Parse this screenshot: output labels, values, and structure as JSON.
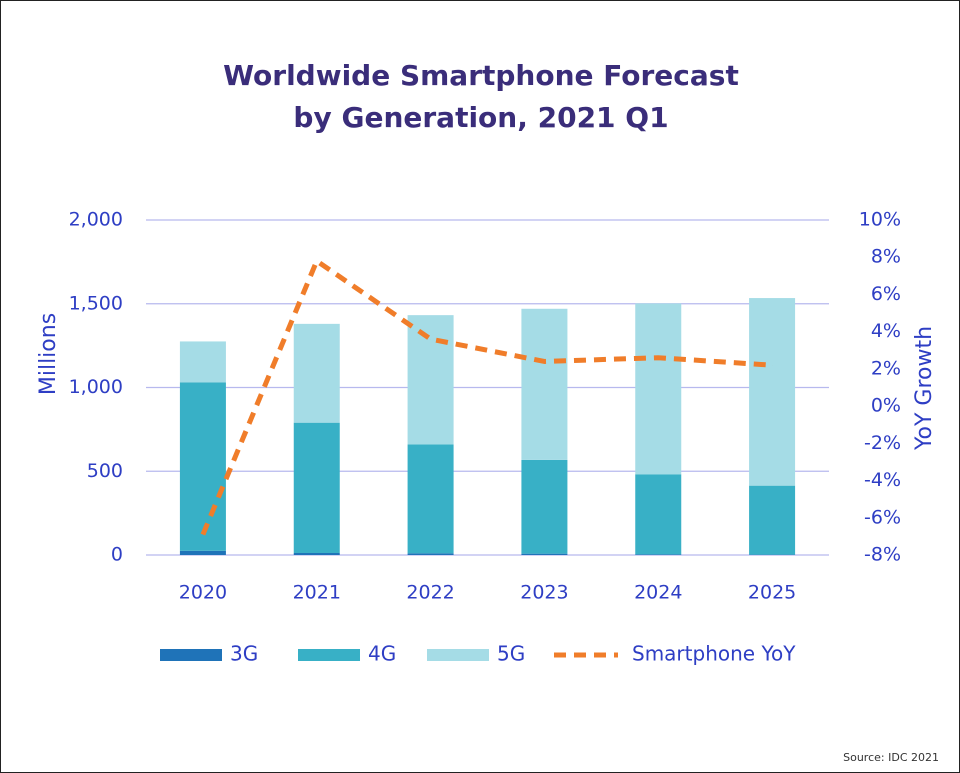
{
  "colors": {
    "title": "#3a2d7a",
    "axis_text": "#2e3ec4",
    "grid": "#b7b9ee",
    "3G": "#1f73b8",
    "4G": "#38b0c6",
    "5G": "#a5dce6",
    "yoy": "#f07d2a"
  },
  "source": "Source: IDC 2021",
  "chart_data": {
    "type": "bar",
    "stacked": true,
    "title_lines": [
      "Worldwide Smartphone Forecast",
      "by Generation, 2021 Q1"
    ],
    "ylabel": "Millions",
    "y2label": "YoY Growth",
    "categories": [
      "2020",
      "2021",
      "2022",
      "2023",
      "2024",
      "2025"
    ],
    "ylim": [
      0,
      2000
    ],
    "yticks": [
      0,
      500,
      1000,
      1500,
      2000
    ],
    "ytick_labels": [
      "0",
      "500",
      "1,000",
      "1,500",
      "2,000"
    ],
    "y2lim": [
      -8,
      10
    ],
    "y2ticks": [
      -8,
      -6,
      -4,
      -2,
      0,
      2,
      4,
      6,
      8,
      10
    ],
    "y2tick_labels": [
      "-8%",
      "-6%",
      "-4%",
      "-2%",
      "0%",
      "2%",
      "4%",
      "6%",
      "8%",
      "10%"
    ],
    "grid": true,
    "legend_position": "bottom",
    "series": [
      {
        "name": "3G",
        "values": [
          25,
          12,
          10,
          8,
          4,
          2
        ]
      },
      {
        "name": "4G",
        "values": [
          1005,
          778,
          650,
          560,
          478,
          412
        ]
      },
      {
        "name": "5G",
        "values": [
          245,
          590,
          772,
          902,
          1020,
          1120
        ]
      }
    ],
    "line_series": {
      "name": "Smartphone YoY",
      "axis": "right",
      "style": "dashed",
      "values": [
        -6.9,
        7.8,
        3.6,
        2.4,
        2.6,
        2.2
      ]
    }
  }
}
